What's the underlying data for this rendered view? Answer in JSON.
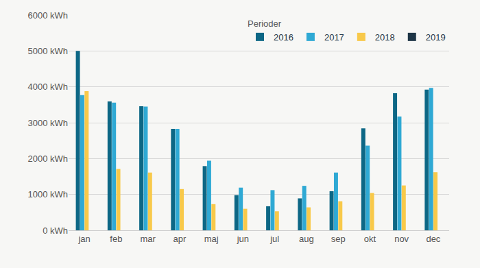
{
  "chart_data": {
    "type": "bar",
    "legend_title": "Perioder",
    "categories": [
      "jan",
      "feb",
      "mar",
      "apr",
      "maj",
      "jun",
      "jul",
      "aug",
      "sep",
      "okt",
      "nov",
      "dec"
    ],
    "series": [
      {
        "name": "2016",
        "color": "#0d6785",
        "values": [
          5000,
          3590,
          3460,
          2830,
          1790,
          980,
          670,
          890,
          1090,
          2840,
          3820,
          3920
        ]
      },
      {
        "name": "2017",
        "color": "#2fa9d4",
        "values": [
          3770,
          3560,
          3450,
          2830,
          1940,
          1190,
          1120,
          1240,
          1610,
          2360,
          3170,
          3970
        ]
      },
      {
        "name": "2018",
        "color": "#f8c94a",
        "values": [
          3880,
          1710,
          1610,
          1150,
          730,
          600,
          530,
          640,
          810,
          1040,
          1250,
          1620
        ]
      },
      {
        "name": "2019",
        "color": "#1e3546",
        "values": [
          null,
          null,
          null,
          null,
          null,
          null,
          null,
          null,
          null,
          null,
          null,
          null
        ]
      }
    ],
    "ylim": [
      0,
      6000
    ],
    "yticks": [
      {
        "value": 0,
        "label": "0 kWh"
      },
      {
        "value": 1000,
        "label": "1000 kWh"
      },
      {
        "value": 2000,
        "label": "2000 kWh"
      },
      {
        "value": 3000,
        "label": "3000 kWh"
      },
      {
        "value": 4000,
        "label": "4000 kWh"
      },
      {
        "value": 5000,
        "label": "5000 kWh"
      },
      {
        "value": 6000,
        "label": "6000 kWh"
      }
    ],
    "grid": true,
    "legend": "top right"
  }
}
